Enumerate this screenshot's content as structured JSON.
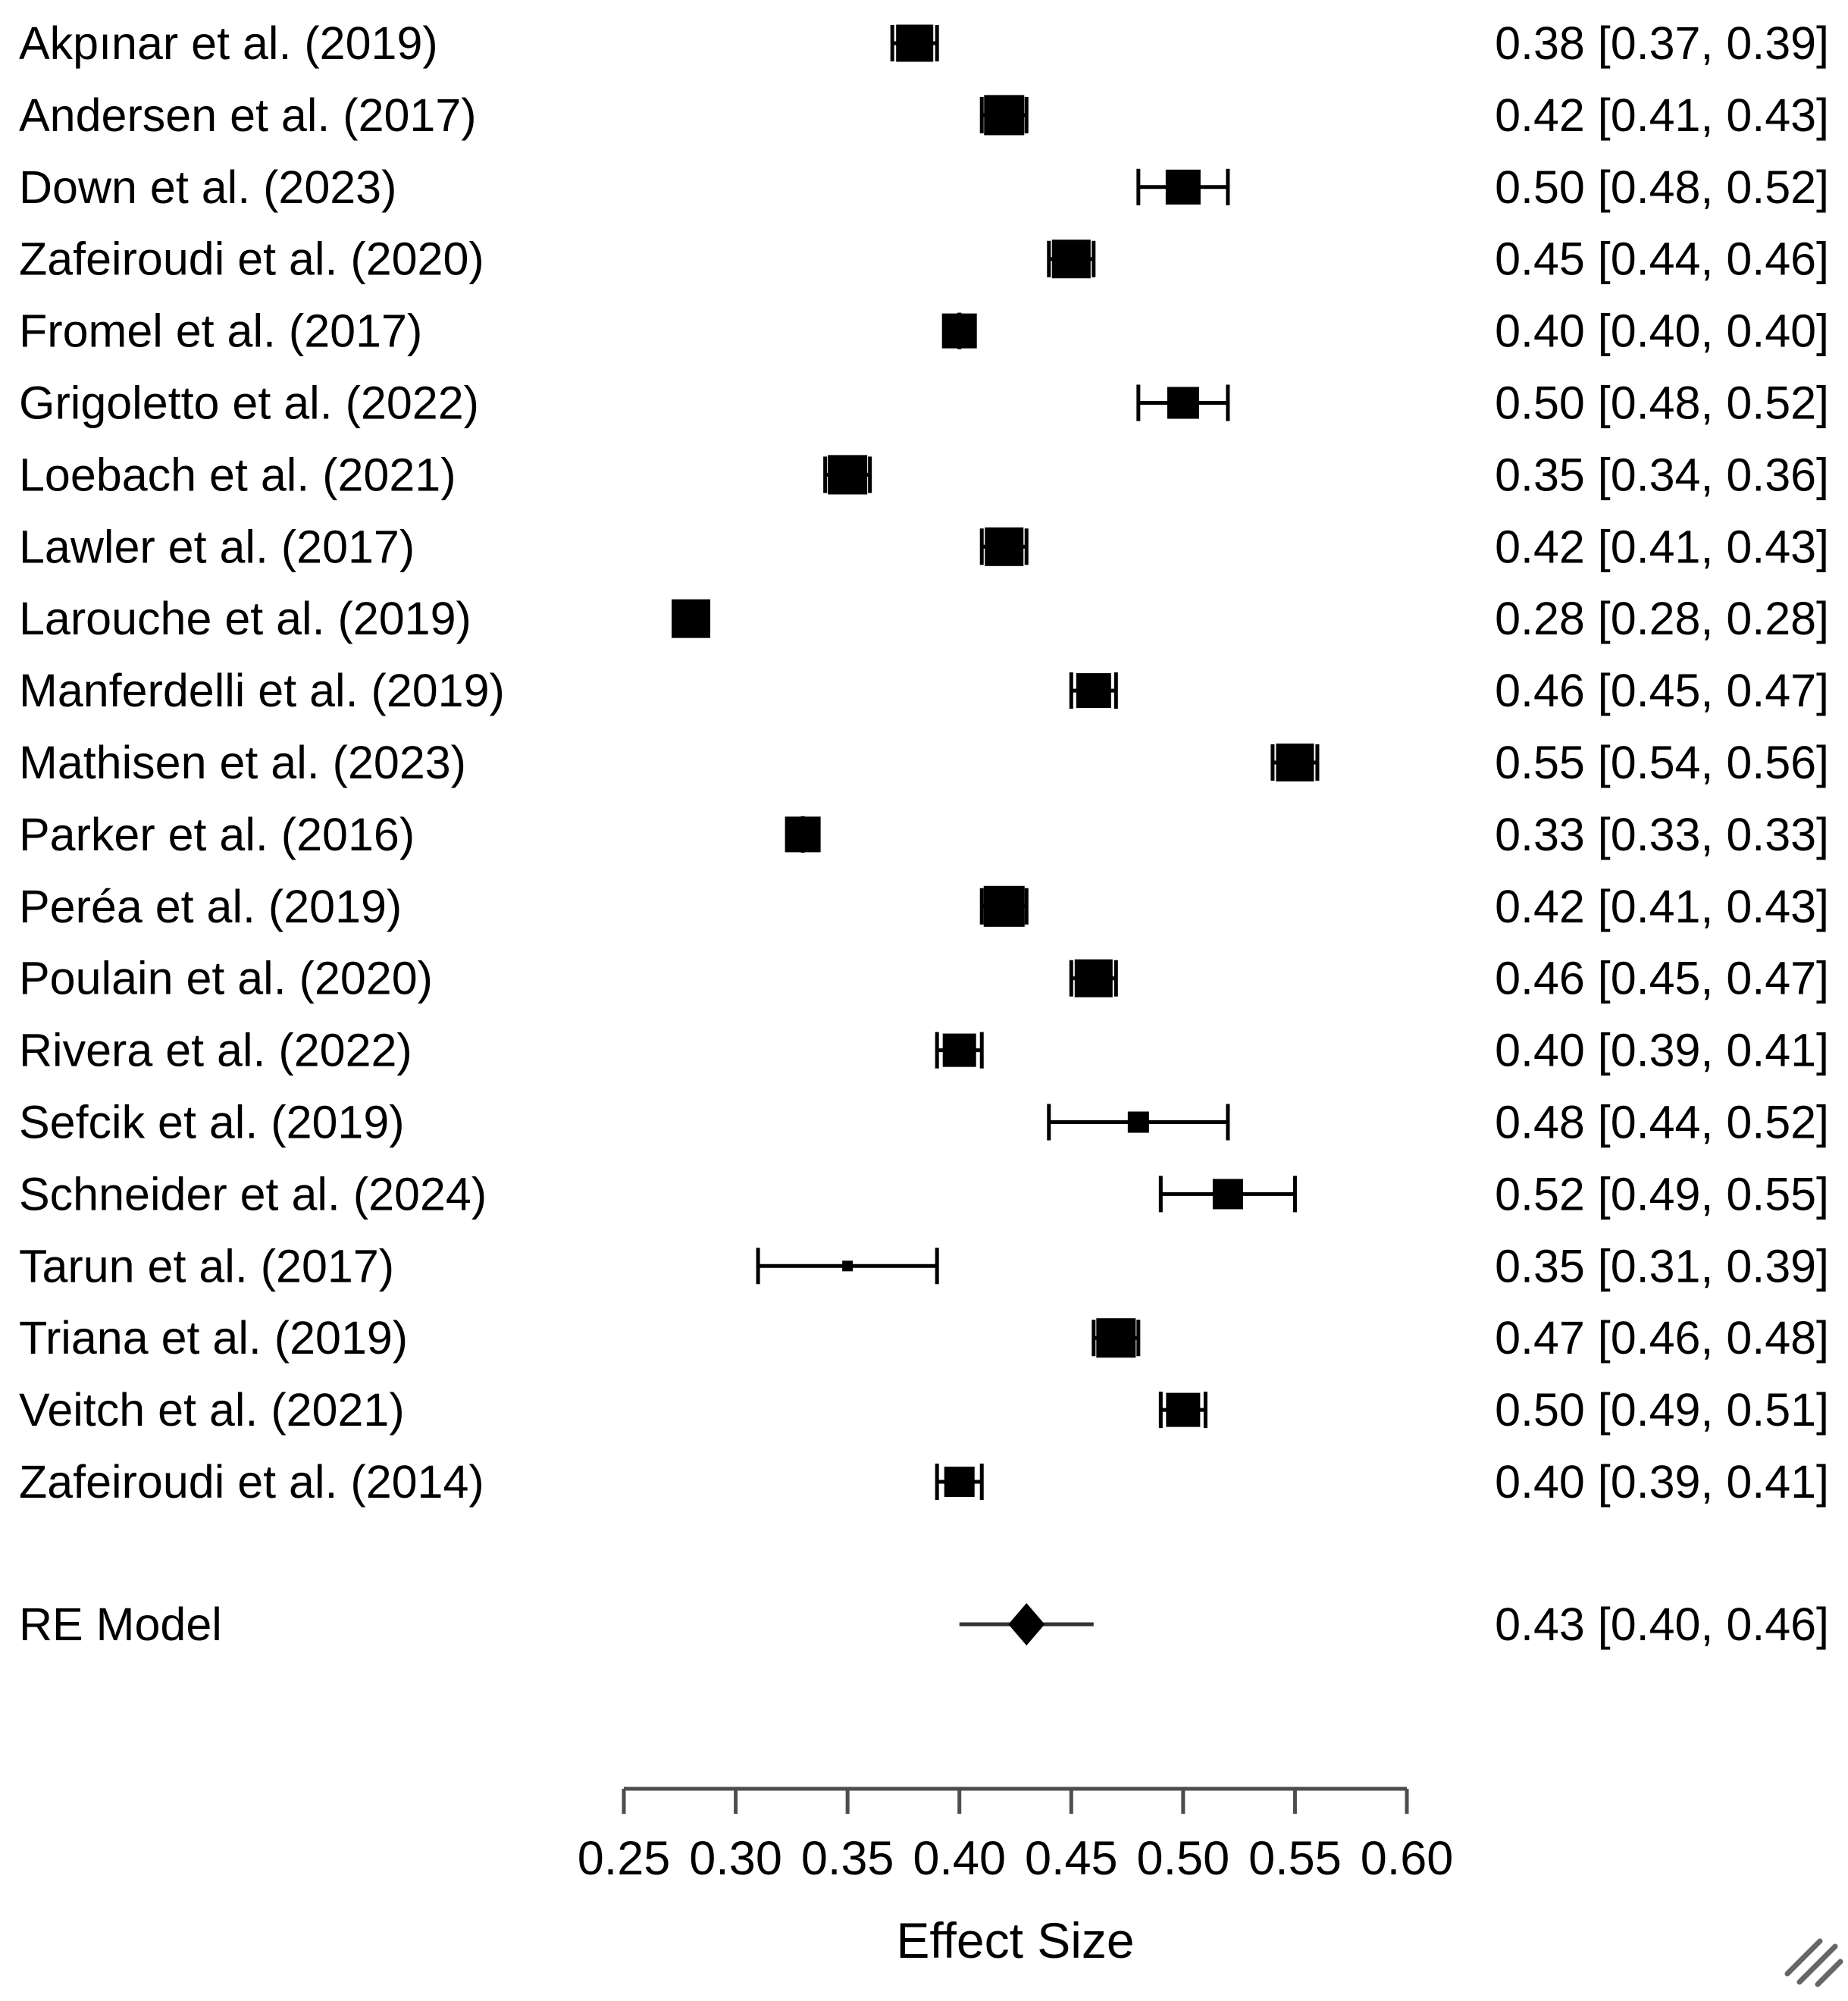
{
  "chart_data": {
    "type": "forest",
    "title": "",
    "xlabel": "Effect Size",
    "xlim": [
      0.25,
      0.6
    ],
    "tick_values": [
      0.25,
      0.3,
      0.35,
      0.4,
      0.45,
      0.5,
      0.55,
      0.6
    ],
    "tick_labels": [
      "0.25",
      "0.30",
      "0.35",
      "0.40",
      "0.45",
      "0.50",
      "0.55",
      "0.60"
    ],
    "grid": false,
    "legend": "none",
    "studies": [
      {
        "label": "Akpınar et al. (2019)",
        "effect": 0.38,
        "ci_lower": 0.37,
        "ci_upper": 0.39,
        "annotation": "0.38 [0.37, 0.39]",
        "box": 49
      },
      {
        "label": "Andersen et al. (2017)",
        "effect": 0.42,
        "ci_lower": 0.41,
        "ci_upper": 0.43,
        "annotation": "0.42 [0.41, 0.43]",
        "box": 53
      },
      {
        "label": "Down et al. (2023)",
        "effect": 0.5,
        "ci_lower": 0.48,
        "ci_upper": 0.52,
        "annotation": "0.50 [0.48, 0.52]",
        "box": 46
      },
      {
        "label": "Zafeiroudi et al. (2020)",
        "effect": 0.45,
        "ci_lower": 0.44,
        "ci_upper": 0.46,
        "annotation": "0.45 [0.44, 0.46]",
        "box": 51
      },
      {
        "label": "Fromel et al. (2017)",
        "effect": 0.4,
        "ci_lower": 0.4,
        "ci_upper": 0.4,
        "annotation": "0.40 [0.40, 0.40]",
        "box": 46
      },
      {
        "label": "Grigoletto et al. (2022)",
        "effect": 0.5,
        "ci_lower": 0.48,
        "ci_upper": 0.52,
        "annotation": "0.50 [0.48, 0.52]",
        "box": 42
      },
      {
        "label": "Loebach et al. (2021)",
        "effect": 0.35,
        "ci_lower": 0.34,
        "ci_upper": 0.36,
        "annotation": "0.35 [0.34, 0.36]",
        "box": 52
      },
      {
        "label": "Lawler et al. (2017)",
        "effect": 0.42,
        "ci_lower": 0.41,
        "ci_upper": 0.43,
        "annotation": "0.42 [0.41, 0.43]",
        "box": 51
      },
      {
        "label": "Larouche et al. (2019)",
        "effect": 0.28,
        "ci_lower": 0.28,
        "ci_upper": 0.28,
        "annotation": "0.28 [0.28, 0.28]",
        "box": 51
      },
      {
        "label": "Manferdelli et al. (2019)",
        "effect": 0.46,
        "ci_lower": 0.45,
        "ci_upper": 0.47,
        "annotation": "0.46 [0.45, 0.47]",
        "box": 46
      },
      {
        "label": "Mathisen et al. (2023)",
        "effect": 0.55,
        "ci_lower": 0.54,
        "ci_upper": 0.56,
        "annotation": "0.55 [0.54, 0.56]",
        "box": 50
      },
      {
        "label": "Parker et al. (2016)",
        "effect": 0.33,
        "ci_lower": 0.33,
        "ci_upper": 0.33,
        "annotation": "0.33 [0.33, 0.33]",
        "box": 47
      },
      {
        "label": "Peréa et al. (2019)",
        "effect": 0.42,
        "ci_lower": 0.41,
        "ci_upper": 0.43,
        "annotation": "0.42 [0.41, 0.43]",
        "box": 54
      },
      {
        "label": "Poulain et al. (2020)",
        "effect": 0.46,
        "ci_lower": 0.45,
        "ci_upper": 0.47,
        "annotation": "0.46 [0.45, 0.47]",
        "box": 50
      },
      {
        "label": "Rivera et al. (2022)",
        "effect": 0.4,
        "ci_lower": 0.39,
        "ci_upper": 0.41,
        "annotation": "0.40 [0.39, 0.41]",
        "box": 44
      },
      {
        "label": "Sefcik et al. (2019)",
        "effect": 0.48,
        "ci_lower": 0.44,
        "ci_upper": 0.52,
        "annotation": "0.48 [0.44, 0.52]",
        "box": 28
      },
      {
        "label": "Schneider et al. (2024)",
        "effect": 0.52,
        "ci_lower": 0.49,
        "ci_upper": 0.55,
        "annotation": "0.52 [0.49, 0.55]",
        "box": 40
      },
      {
        "label": "Tarun et al. (2017)",
        "effect": 0.35,
        "ci_lower": 0.31,
        "ci_upper": 0.39,
        "annotation": "0.35 [0.31, 0.39]",
        "box": 14
      },
      {
        "label": "Triana et al. (2019)",
        "effect": 0.47,
        "ci_lower": 0.46,
        "ci_upper": 0.48,
        "annotation": "0.47 [0.46, 0.48]",
        "box": 52
      },
      {
        "label": "Veitch et al. (2021)",
        "effect": 0.5,
        "ci_lower": 0.49,
        "ci_upper": 0.51,
        "annotation": "0.50 [0.49, 0.51]",
        "box": 45
      },
      {
        "label": "Zafeiroudi et al. (2014)",
        "effect": 0.4,
        "ci_lower": 0.39,
        "ci_upper": 0.41,
        "annotation": "0.40 [0.39, 0.41]",
        "box": 40
      }
    ],
    "summary": {
      "label": "RE Model",
      "effect": 0.43,
      "ci_lower": 0.4,
      "ci_upper": 0.46,
      "annotation": "0.43 [0.40, 0.46]"
    },
    "colors": {
      "marker": "#000000",
      "text": "#000000",
      "axis": "#4d4d4d",
      "summary_line": "#333333",
      "corner_marks": "#666666",
      "background": "#ffffff"
    }
  }
}
